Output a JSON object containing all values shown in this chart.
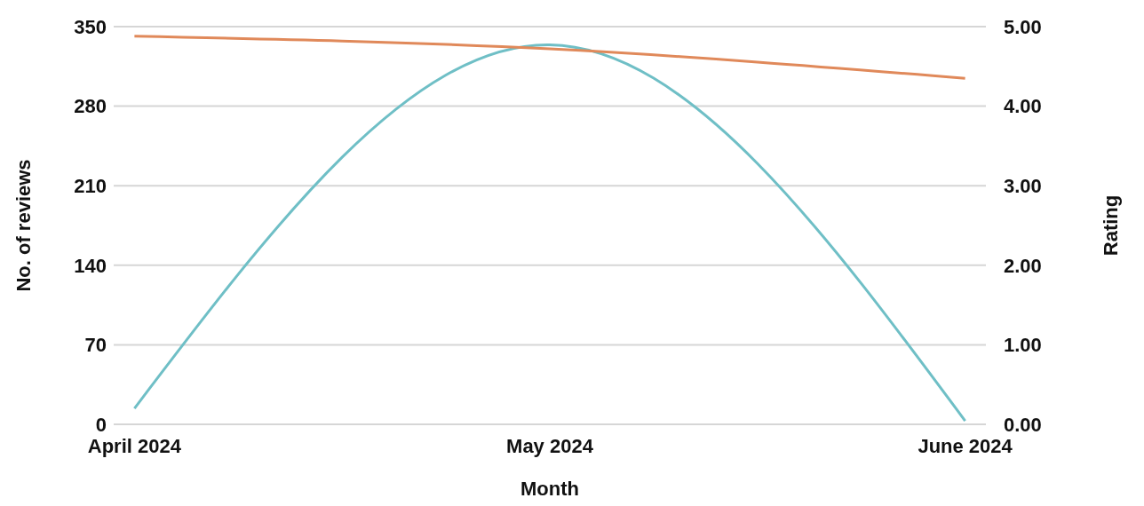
{
  "chart_data": {
    "type": "line",
    "xlabel": "Month",
    "ylabel": "No. of reviews",
    "y2label": "Rating",
    "categories": [
      "April 2024",
      "May 2024",
      "June 2024"
    ],
    "series": [
      {
        "color": "#6fbfc6",
        "values": [
          14,
          334,
          3
        ]
      },
      {
        "color": "#e0895a",
        "values": [
          4.88,
          4.72,
          4.35
        ],
        "axis": "y2"
      }
    ],
    "ylim": [
      0,
      350
    ],
    "yticks": [
      0,
      70,
      140,
      210,
      280,
      350
    ],
    "y2lim": [
      0,
      5
    ],
    "y2ticks": [
      {
        "value": 0,
        "label": "0.00"
      },
      {
        "value": 1,
        "label": "1.00"
      },
      {
        "value": 2,
        "label": "2.00"
      },
      {
        "value": 3,
        "label": "3.00"
      },
      {
        "value": 4,
        "label": "4.00"
      },
      {
        "value": 5,
        "label": "5.00"
      }
    ],
    "grid": "y",
    "legend": false,
    "marker": "none",
    "line_style": "solid"
  }
}
